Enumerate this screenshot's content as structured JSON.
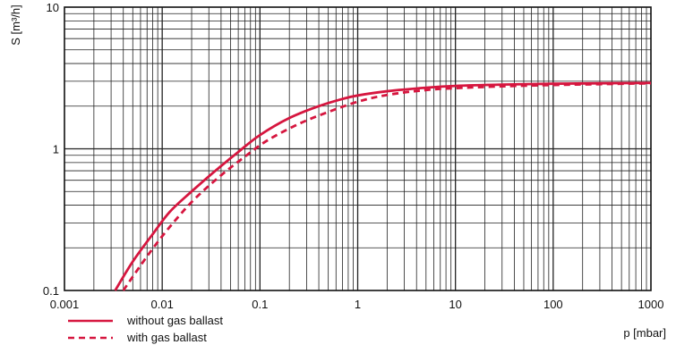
{
  "chart_data": {
    "type": "line",
    "xlabel": "p [mbar]",
    "ylabel": "S [m³/h]",
    "xscale": "log",
    "yscale": "log",
    "xlim": [
      0.001,
      1000
    ],
    "ylim": [
      0.1,
      10
    ],
    "grid": true,
    "legend_position": "bottom-left",
    "x_ticks": [
      "0.001",
      "0.01",
      "0.1",
      "1",
      "10",
      "100",
      "1000"
    ],
    "y_ticks": [
      "0.1",
      "1",
      "10"
    ],
    "series": [
      {
        "name": "without gas ballast",
        "style": "solid",
        "color": "#d6163f",
        "x": [
          0.0033,
          0.005,
          0.008,
          0.012,
          0.02,
          0.035,
          0.06,
          0.1,
          0.2,
          0.4,
          0.7,
          1,
          2,
          5,
          10,
          30,
          100,
          300,
          1000
        ],
        "y": [
          0.1,
          0.16,
          0.25,
          0.36,
          0.5,
          0.7,
          0.95,
          1.25,
          1.65,
          2.0,
          2.25,
          2.38,
          2.55,
          2.7,
          2.78,
          2.84,
          2.88,
          2.9,
          2.92
        ]
      },
      {
        "name": "with gas ballast",
        "style": "dashed",
        "color": "#d6163f",
        "x": [
          0.004,
          0.006,
          0.009,
          0.014,
          0.022,
          0.04,
          0.07,
          0.12,
          0.25,
          0.5,
          1,
          2,
          5,
          10,
          30,
          100,
          300,
          1000
        ],
        "y": [
          0.1,
          0.15,
          0.22,
          0.32,
          0.45,
          0.65,
          0.88,
          1.15,
          1.5,
          1.82,
          2.15,
          2.4,
          2.6,
          2.68,
          2.76,
          2.82,
          2.86,
          2.9
        ]
      }
    ]
  }
}
